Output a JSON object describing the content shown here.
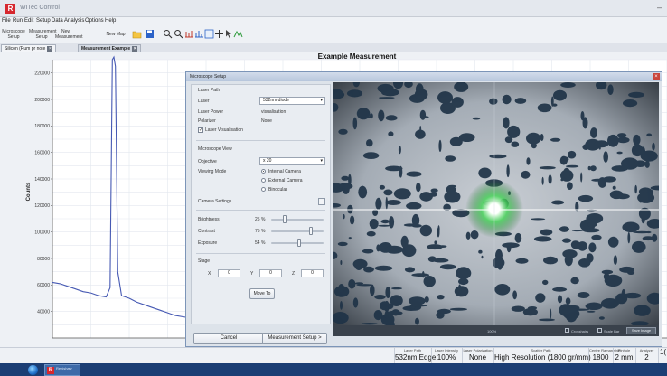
{
  "app": {
    "title": "WITec Control",
    "logo_letter": "R"
  },
  "menu": [
    "File",
    "Run",
    "Edit",
    "Setup",
    "Data",
    "Analysis",
    "Options",
    "Help"
  ],
  "toolbar": {
    "buttons": [
      {
        "label": "Microscope Setup"
      },
      {
        "label": "Measurement Setup"
      },
      {
        "label": "New Measurement"
      },
      {
        "label": "New Map"
      }
    ]
  },
  "tabs": [
    {
      "label": "Silicon (Rum pr note"
    },
    {
      "label": "Measurement Example"
    }
  ],
  "chart_data": {
    "type": "line",
    "title": "Example Measurement",
    "ylabel": "Counts",
    "xlabel": "",
    "xlim": [
      0,
      800
    ],
    "ylim": [
      20000,
      230000
    ],
    "x_ticks": [
      200,
      400,
      600
    ],
    "y_ticks": [
      40000,
      60000,
      80000,
      100000,
      120000,
      140000,
      160000,
      180000,
      200000,
      220000
    ],
    "y_tick_labels": [
      "40000",
      "60000",
      "80000",
      "100000",
      "120000",
      "140000",
      "160000",
      "180000",
      "200000",
      "220000"
    ],
    "grid": true,
    "series": [
      {
        "x": [
          0,
          10,
          20,
          30,
          40,
          50,
          60,
          70,
          75,
          78,
          80,
          82,
          85,
          90,
          100,
          110,
          120,
          130,
          140,
          150,
          160,
          170,
          180,
          190,
          200,
          210,
          220,
          230,
          240,
          250,
          260,
          265,
          268,
          270,
          272,
          275,
          280,
          290,
          300,
          310,
          320,
          330,
          335,
          338,
          340,
          342,
          345,
          350,
          360,
          380,
          400
        ],
        "y": [
          62000,
          61000,
          59000,
          57000,
          55000,
          54000,
          52000,
          51000,
          58000,
          230000,
          232000,
          225000,
          70000,
          52000,
          50000,
          47000,
          45000,
          43000,
          41000,
          39000,
          37000,
          36000,
          35000,
          34000,
          33000,
          32500,
          32000,
          31500,
          31000,
          30000,
          29500,
          40000,
          175000,
          178000,
          160000,
          45000,
          29000,
          28000,
          27500,
          27000,
          26500,
          26000,
          30000,
          45000,
          52000,
          44000,
          28000,
          25500,
          25000,
          24500,
          24000
        ]
      }
    ]
  },
  "dialog": {
    "title": "Microscope Setup",
    "laser_path_label": "Laser Path",
    "laser_label": "Laser",
    "laser_value": "532nm diode",
    "laser_power_label": "Laser Power",
    "laser_power_value": "visualisation",
    "polarizer_label": "Polarizer",
    "polarizer_value": "None",
    "laser_visualisation_label": "Laser Visualisation",
    "microscope_view_label": "Microscope View",
    "objective_label": "Objective",
    "objective_value": "x 20",
    "viewing_mode_label": "Viewing Mode",
    "viewing_modes": [
      "Internal Camera",
      "External Camera",
      "Binocular"
    ],
    "camera_settings_label": "Camera Settings",
    "brightness_label": "Brightness",
    "brightness_value": "25 %",
    "brightness_level": 0.25,
    "contrast_label": "Contrast",
    "contrast_value": "75 %",
    "contrast_level": 0.75,
    "exposure_label": "Exposure",
    "exposure_value": "54 %",
    "exposure_level": 0.54,
    "stage_label": "Stage",
    "x_label": "X",
    "x_value": "0",
    "y_label": "Y",
    "y_value": "0",
    "z_label": "Z",
    "z_value": "0",
    "move_to_label": "Move To",
    "cancel_label": "Cancel",
    "measurement_setup_label": "Measurement Setup >",
    "camera_zoom_label": "100%",
    "crosshairs_label": "Crosshairs",
    "scale_bar_label": "Scale Bar",
    "save_image_label": "Save Image"
  },
  "status": [
    {
      "header": "Laser Path",
      "value": "532nm Edge"
    },
    {
      "header": "Laser Intensity",
      "value": "100%"
    },
    {
      "header": "Laser Polarization",
      "value": "None"
    },
    {
      "header": "Scatter Path",
      "value": "High Resolution (1800 gr/mm)"
    },
    {
      "header": "Centre Raman shift",
      "value": "1800"
    },
    {
      "header": "Pinhole",
      "value": "2 mm"
    },
    {
      "header": "Analyzer",
      "value": "2"
    },
    {
      "header": "",
      "value": "1("
    }
  ],
  "taskbar": {
    "app_label": "Renishaw"
  },
  "colors": {
    "series": "#4659b3",
    "grid": "#e3e8ef",
    "accent": "#d6282f"
  }
}
